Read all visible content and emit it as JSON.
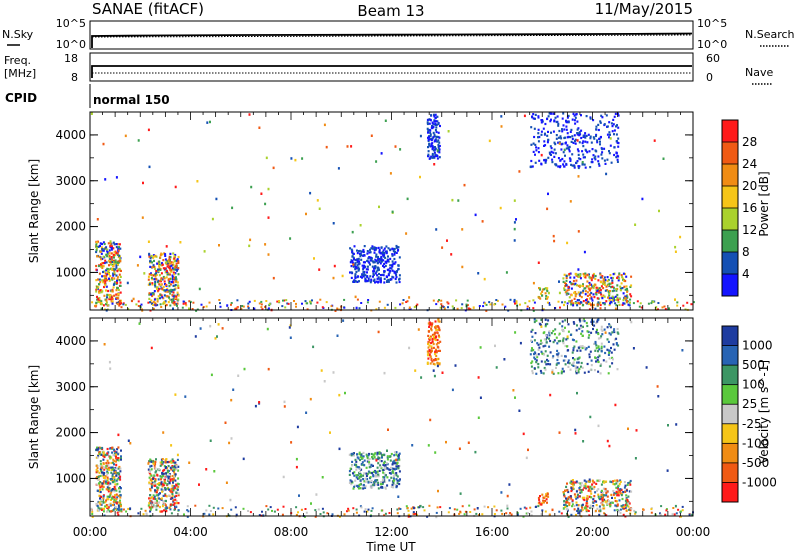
{
  "header": {
    "station": "SANAE (fitACF)",
    "beam": "Beam 13",
    "date": "11/May/2015"
  },
  "noise_panel": {
    "left_label": "N.Sky",
    "right_label": "N.Search",
    "left_ticks": [
      "10^5",
      "10^0"
    ],
    "right_ticks": [
      "10^5",
      "10^0"
    ]
  },
  "freq_panel": {
    "left_label_line1": "Freq.",
    "left_label_line2": "[MHz]",
    "right_label": "Nave",
    "left_ticks": [
      "18",
      "8"
    ],
    "right_ticks": [
      "60",
      "0"
    ]
  },
  "cpid": {
    "label": "CPID",
    "mode": "normal 150"
  },
  "x_axis": {
    "label": "Time UT",
    "ticks": [
      "00:00",
      "04:00",
      "08:00",
      "12:00",
      "16:00",
      "20:00",
      "00:00"
    ]
  },
  "chart_data": [
    {
      "type": "heatmap",
      "panel": "power",
      "ylabel": "Slant Range [km]",
      "yticks": [
        "1000",
        "2000",
        "3000",
        "4000"
      ],
      "ylim": [
        180,
        4500
      ],
      "xlim_hours": [
        0,
        24
      ],
      "colorbar_label": "Power [dB]",
      "colorbar_ticks": [
        "28",
        "24",
        "20",
        "16",
        "12",
        "8",
        "4"
      ],
      "colorbar_colors": [
        "#ff1a1a",
        "#f05a14",
        "#f08c14",
        "#f5c518",
        "#aad22d",
        "#3ca050",
        "#1450b4",
        "#1414ff"
      ],
      "echo_regions": [
        {
          "t": [
            0.2,
            1.2
          ],
          "r": [
            300,
            1700
          ],
          "level": "mixed"
        },
        {
          "t": [
            2.3,
            3.5
          ],
          "r": [
            300,
            1450
          ],
          "level": "mixed"
        },
        {
          "t": [
            10.3,
            12.3
          ],
          "r": [
            800,
            1600
          ],
          "level": "low"
        },
        {
          "t": [
            13.4,
            13.9
          ],
          "r": [
            3500,
            4500
          ],
          "level": "low"
        },
        {
          "t": [
            17.8,
            18.2
          ],
          "r": [
            450,
            700
          ],
          "level": "high"
        },
        {
          "t": [
            18.8,
            21.5
          ],
          "r": [
            300,
            1000
          ],
          "level": "mixed"
        },
        {
          "t": [
            17.5,
            21.0
          ],
          "r": [
            3300,
            4500
          ],
          "level": "low"
        }
      ]
    },
    {
      "type": "heatmap",
      "panel": "velocity",
      "ylabel": "Slant Range [km]",
      "yticks": [
        "1000",
        "2000",
        "3000",
        "4000"
      ],
      "ylim": [
        180,
        4500
      ],
      "xlim_hours": [
        0,
        24
      ],
      "colorbar_label": "Velocity [m s^-1]",
      "colorbar_ticks": [
        "1000",
        "500",
        "100",
        "25",
        "-25",
        "-100",
        "-500",
        "-1000"
      ],
      "colorbar_colors": [
        "#1e3ca0",
        "#2864b4",
        "#3c9664",
        "#5ac83c",
        "#c8c8c8",
        "#f5c518",
        "#f08c14",
        "#f05a14",
        "#ff1a1a"
      ],
      "echo_regions": [
        {
          "t": [
            0.2,
            1.2
          ],
          "r": [
            300,
            1700
          ],
          "level": "mixed"
        },
        {
          "t": [
            2.3,
            3.5
          ],
          "r": [
            300,
            1450
          ],
          "level": "mixed"
        },
        {
          "t": [
            10.3,
            12.3
          ],
          "r": [
            800,
            1600
          ],
          "level": "low"
        },
        {
          "t": [
            13.4,
            13.9
          ],
          "r": [
            3500,
            4500
          ],
          "level": "negative"
        },
        {
          "t": [
            17.8,
            18.2
          ],
          "r": [
            450,
            700
          ],
          "level": "negative"
        },
        {
          "t": [
            18.8,
            21.5
          ],
          "r": [
            300,
            1000
          ],
          "level": "mixed"
        },
        {
          "t": [
            17.5,
            21.0
          ],
          "r": [
            3300,
            4500
          ],
          "level": "low"
        }
      ]
    }
  ]
}
